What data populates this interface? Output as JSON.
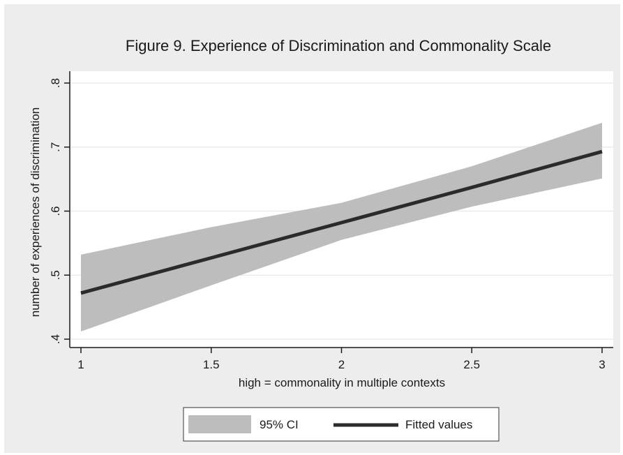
{
  "chart_data": {
    "type": "line",
    "title": "Figure 9.  Experience of Discrimination and Commonality Scale",
    "xlabel": "high = commonality in multiple contexts",
    "ylabel": "number of experiences of discrimination",
    "xlim": [
      1,
      3
    ],
    "ylim": [
      0.4,
      0.8
    ],
    "x_ticks": [
      1,
      1.5,
      2,
      2.5,
      3
    ],
    "x_tick_labels": [
      "1",
      "1.5",
      "2",
      "2.5",
      "3"
    ],
    "y_ticks": [
      0.4,
      0.5,
      0.6,
      0.7,
      0.8
    ],
    "y_tick_labels": [
      ".4",
      ".5",
      ".6",
      ".7",
      ".8"
    ],
    "grid": "horizontal",
    "legend_position": "bottom",
    "series": [
      {
        "name": "95% CI",
        "kind": "band",
        "color": "#bdbdbd",
        "x": [
          1,
          1.5,
          2,
          2.5,
          3
        ],
        "lower": [
          0.412,
          0.484,
          0.555,
          0.607,
          0.651
        ],
        "upper": [
          0.532,
          0.575,
          0.613,
          0.67,
          0.738
        ]
      },
      {
        "name": "Fitted values",
        "kind": "line",
        "color": "#2b2b2b",
        "x": [
          1,
          1.5,
          2,
          2.5,
          3
        ],
        "y": [
          0.472,
          0.527,
          0.582,
          0.637,
          0.693
        ]
      }
    ]
  },
  "legend": {
    "items": [
      {
        "label": "95% CI",
        "swatch": "band"
      },
      {
        "label": "Fitted values",
        "swatch": "line"
      }
    ]
  }
}
